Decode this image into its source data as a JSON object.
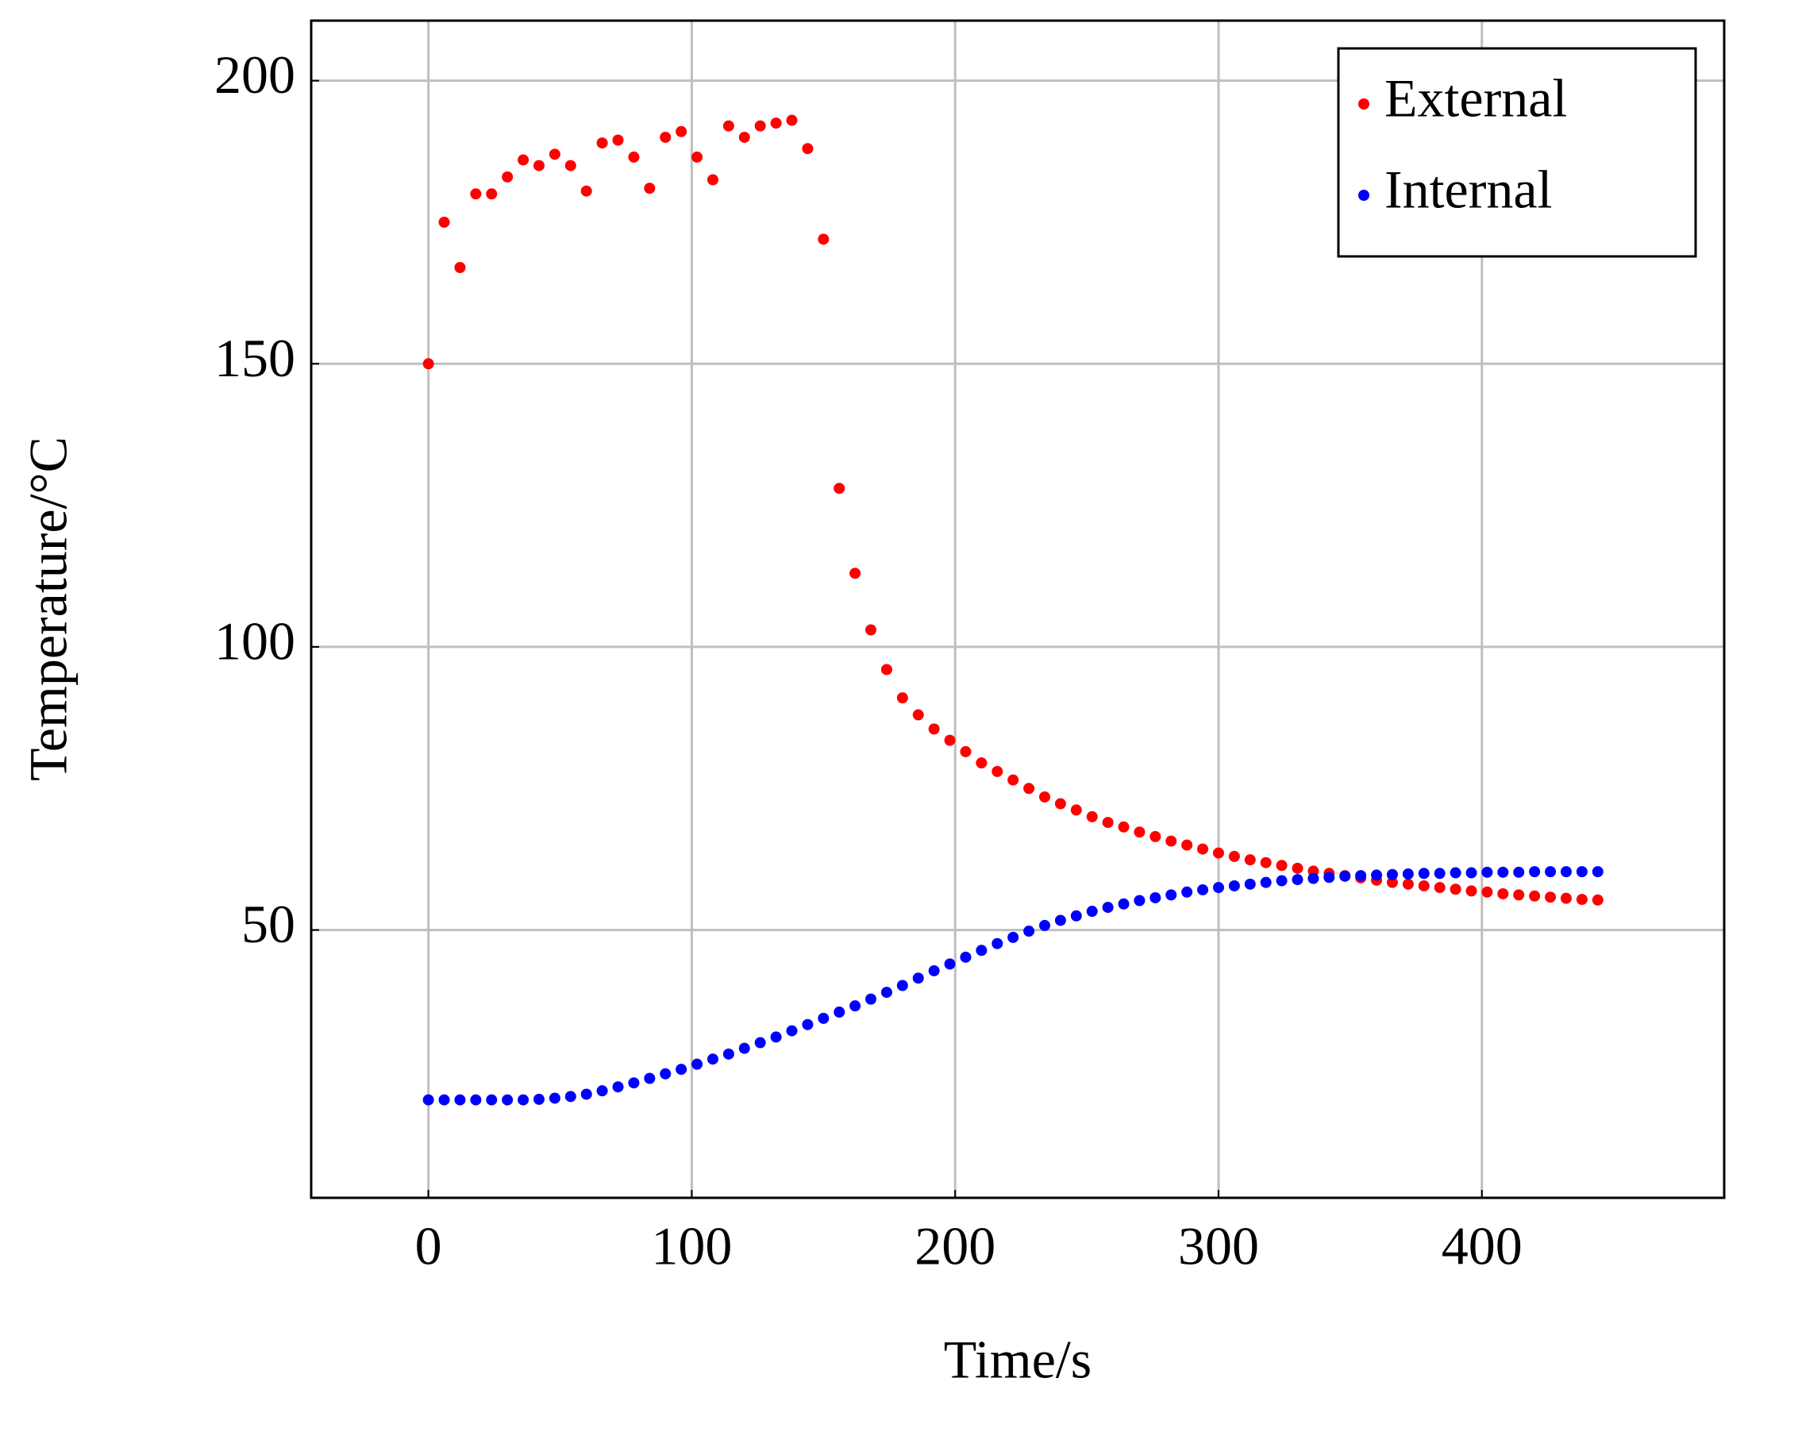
{
  "chart_data": {
    "type": "scatter",
    "xlabel": "Time/s",
    "ylabel": "Temperature/°C",
    "x": [
      0,
      6,
      12,
      18,
      24,
      30,
      36,
      42,
      48,
      54,
      60,
      66,
      72,
      78,
      84,
      90,
      96,
      102,
      108,
      114,
      120,
      126,
      132,
      138,
      144,
      150,
      156,
      162,
      168,
      174,
      180,
      186,
      192,
      198,
      204,
      210,
      216,
      222,
      228,
      234,
      240,
      246,
      252,
      258,
      264,
      270,
      276,
      282,
      288,
      294,
      300,
      306,
      312,
      318,
      324,
      330,
      336,
      342,
      348,
      354,
      360,
      366,
      372,
      378,
      384,
      390,
      396,
      402,
      408,
      414,
      420,
      426,
      432,
      438,
      444
    ],
    "series": [
      {
        "name": "External",
        "color": "#ff0000",
        "values": [
          150,
          175,
          167,
          180,
          180,
          183,
          186,
          185,
          187,
          185,
          180.5,
          189,
          189.5,
          186.5,
          181,
          190,
          191,
          186.5,
          182.5,
          192,
          190,
          192,
          192.5,
          193,
          188,
          172,
          128,
          113,
          103,
          96,
          91,
          88,
          85.5,
          83.5,
          81.5,
          79.5,
          78,
          76.5,
          75,
          73.5,
          72.3,
          71.2,
          70,
          69,
          68.2,
          67.3,
          66.5,
          65.7,
          65,
          64.3,
          63.6,
          63,
          62.4,
          61.9,
          61.4,
          60.9,
          60.4,
          60,
          59.6,
          59.2,
          58.8,
          58.4,
          58.1,
          57.8,
          57.5,
          57.2,
          56.9,
          56.7,
          56.4,
          56.2,
          56,
          55.8,
          55.6,
          55.4,
          55.3
        ]
      },
      {
        "name": "Internal",
        "color": "#0000ff",
        "values": [
          20,
          20,
          20,
          20,
          20,
          20,
          20,
          20.1,
          20.3,
          20.6,
          21,
          21.6,
          22.3,
          23,
          23.8,
          24.6,
          25.4,
          26.3,
          27.2,
          28.1,
          29.1,
          30.1,
          31.1,
          32.2,
          33.3,
          34.4,
          35.5,
          36.6,
          37.8,
          39,
          40.2,
          41.5,
          42.8,
          44,
          45.2,
          46.4,
          47.6,
          48.7,
          49.8,
          50.8,
          51.7,
          52.5,
          53.3,
          54,
          54.6,
          55.2,
          55.7,
          56.2,
          56.7,
          57.1,
          57.5,
          57.8,
          58.1,
          58.4,
          58.7,
          58.9,
          59.1,
          59.3,
          59.5,
          59.6,
          59.7,
          59.8,
          59.9,
          60,
          60,
          60.1,
          60.1,
          60.2,
          60.2,
          60.2,
          60.3,
          60.3,
          60.3,
          60.3,
          60.3
        ]
      }
    ],
    "xlim": [
      -44.5,
      492
    ],
    "ylim": [
      2.7,
      210.6
    ],
    "xticks": [
      0,
      100,
      200,
      300,
      400
    ],
    "yticks": [
      50,
      100,
      150,
      200
    ],
    "grid": true,
    "legend": "top right"
  }
}
